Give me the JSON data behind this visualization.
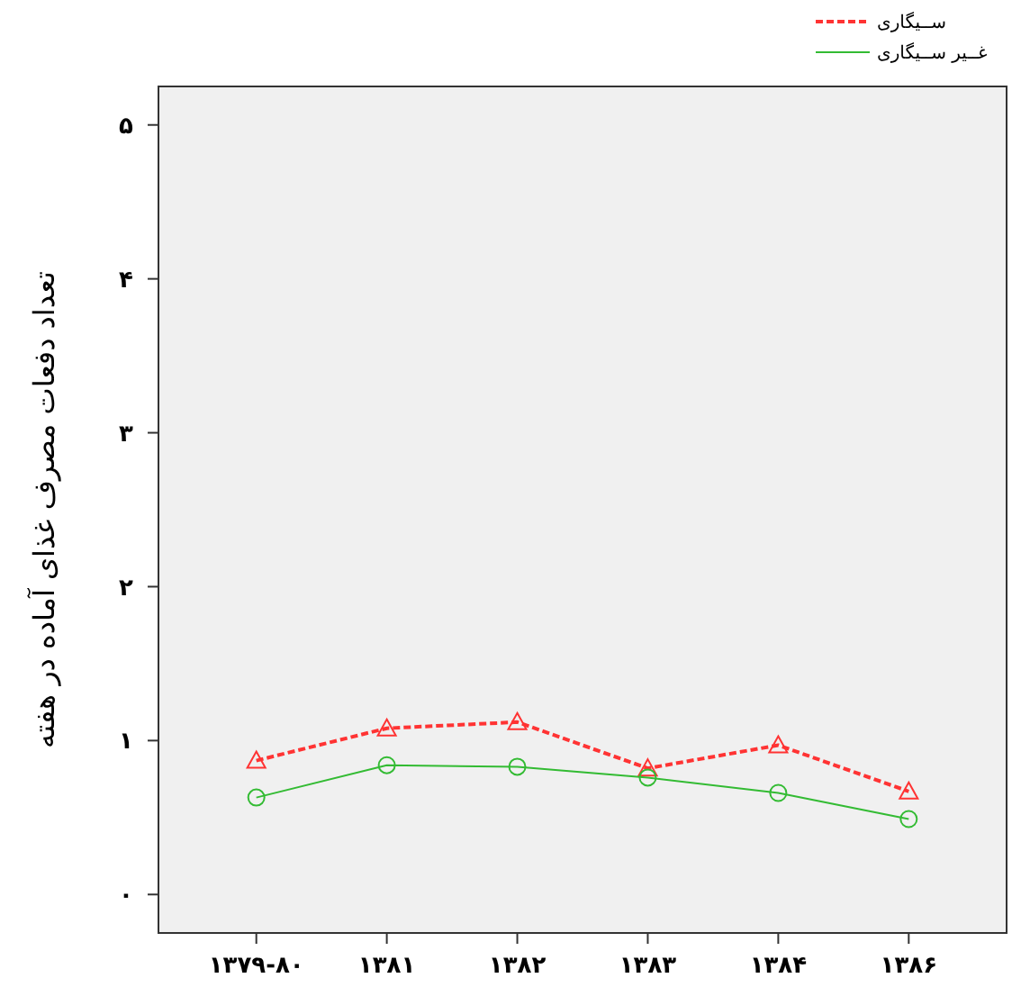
{
  "chart_data": {
    "type": "line",
    "ylabel": "تعداد دفعات مصرف غذای آماده در هفته",
    "categories": [
      "۱۳۷۹-۸۰",
      "۱۳۸۱",
      "۱۳۸۲",
      "۱۳۸۳",
      "۱۳۸۴",
      "۱۳۸۶"
    ],
    "series": [
      {
        "name": "ســیگاری",
        "color": "#ff3333",
        "values": [
          0.87,
          1.08,
          1.12,
          0.82,
          0.97,
          0.67
        ],
        "marker": "triangle",
        "line_style": "dashed"
      },
      {
        "name": "غــیر ســیگاری",
        "color": "#33bb33",
        "values": [
          0.63,
          0.84,
          0.83,
          0.76,
          0.66,
          0.49
        ],
        "marker": "circle",
        "line_style": "solid"
      }
    ],
    "ylim": [
      -0.25,
      5.25
    ],
    "yticks": [
      {
        "value": 0,
        "label": "۰"
      },
      {
        "value": 1,
        "label": "۱"
      },
      {
        "value": 2,
        "label": "۲"
      },
      {
        "value": 3,
        "label": "۳"
      },
      {
        "value": 4,
        "label": "۴"
      },
      {
        "value": 5,
        "label": "۵"
      }
    ],
    "grid": false,
    "legend": "top right"
  }
}
